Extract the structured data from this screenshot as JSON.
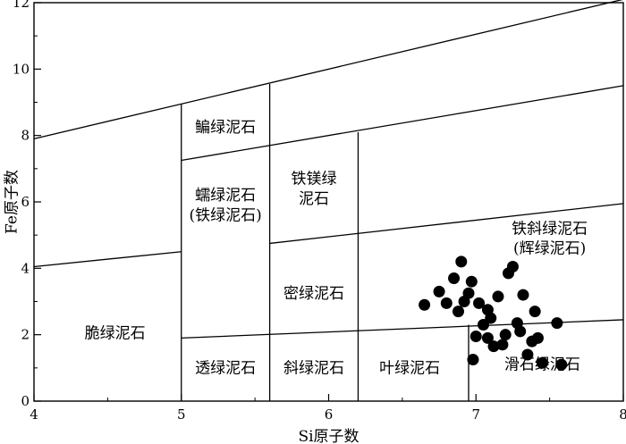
{
  "chart_data": {
    "type": "scatter",
    "xlabel": "Si原子数",
    "ylabel": "Fe原子数",
    "xlim": [
      4,
      8
    ],
    "ylim": [
      0,
      12
    ],
    "x_ticks": [
      "4",
      "5",
      "6",
      "7",
      "8"
    ],
    "y_ticks": [
      "0",
      "2",
      "4",
      "6",
      "8",
      "10",
      "12"
    ],
    "grid": false,
    "boundary_lines": [
      {
        "points": [
          [
            4,
            7.9
          ],
          [
            8,
            12.1
          ]
        ]
      },
      {
        "points": [
          [
            5,
            7.25
          ],
          [
            8,
            9.5
          ]
        ]
      },
      {
        "points": [
          [
            4,
            4.05
          ],
          [
            5,
            4.5
          ]
        ]
      },
      {
        "points": [
          [
            5.6,
            4.75
          ],
          [
            8,
            5.95
          ]
        ]
      },
      {
        "points": [
          [
            5,
            1.9
          ],
          [
            8,
            2.45
          ]
        ]
      },
      {
        "points": [
          [
            5,
            0
          ],
          [
            5,
            8.95
          ]
        ]
      },
      {
        "points": [
          [
            5.6,
            0
          ],
          [
            5.6,
            9.55
          ]
        ]
      },
      {
        "points": [
          [
            6.2,
            0
          ],
          [
            6.2,
            8.1
          ]
        ]
      },
      {
        "points": [
          [
            6.95,
            0
          ],
          [
            6.95,
            2.3
          ]
        ]
      }
    ],
    "regions": [
      {
        "label": "鳊绿泥石",
        "x": 5.3,
        "y": 8.1
      },
      {
        "label": "蠕绿泥石",
        "x": 5.3,
        "y": 6.05
      },
      {
        "label": "(铁绿泥石)",
        "x": 5.3,
        "y": 5.45
      },
      {
        "label": "铁镁绿",
        "x": 5.9,
        "y": 6.55
      },
      {
        "label": "泥石",
        "x": 5.9,
        "y": 5.95
      },
      {
        "label": "铁斜绿泥石",
        "x": 7.5,
        "y": 5.05
      },
      {
        "label": "(辉绿泥石)",
        "x": 7.5,
        "y": 4.45
      },
      {
        "label": "密绿泥石",
        "x": 5.9,
        "y": 3.1
      },
      {
        "label": "脆绿泥石",
        "x": 4.55,
        "y": 1.9
      },
      {
        "label": "透绿泥石",
        "x": 5.3,
        "y": 0.85
      },
      {
        "label": "斜绿泥石",
        "x": 5.9,
        "y": 0.85
      },
      {
        "label": "叶绿泥石",
        "x": 6.55,
        "y": 0.85
      },
      {
        "label": "滑石绿泥石",
        "x": 7.45,
        "y": 0.95
      }
    ],
    "points": [
      [
        6.65,
        2.9
      ],
      [
        6.75,
        3.3
      ],
      [
        6.8,
        2.95
      ],
      [
        6.85,
        3.7
      ],
      [
        6.9,
        4.2
      ],
      [
        6.88,
        2.7
      ],
      [
        6.92,
        3.0
      ],
      [
        6.95,
        3.25
      ],
      [
        6.97,
        3.6
      ],
      [
        6.98,
        1.25
      ],
      [
        7.02,
        2.95
      ],
      [
        7.05,
        2.3
      ],
      [
        7.08,
        2.75
      ],
      [
        7.1,
        2.5
      ],
      [
        7.12,
        1.65
      ],
      [
        7.15,
        3.15
      ],
      [
        7.18,
        1.7
      ],
      [
        7.22,
        3.85
      ],
      [
        7.25,
        4.05
      ],
      [
        7.28,
        2.35
      ],
      [
        7.3,
        2.1
      ],
      [
        7.32,
        3.2
      ],
      [
        7.35,
        1.4
      ],
      [
        7.38,
        1.8
      ],
      [
        7.4,
        2.7
      ],
      [
        7.42,
        1.9
      ],
      [
        7.45,
        1.15
      ],
      [
        7.55,
        2.35
      ],
      [
        7.58,
        1.1
      ],
      [
        7.0,
        1.95
      ],
      [
        7.08,
        1.9
      ],
      [
        7.2,
        2.0
      ]
    ],
    "colors": {
      "marker": "#000000",
      "line": "#000000"
    }
  }
}
